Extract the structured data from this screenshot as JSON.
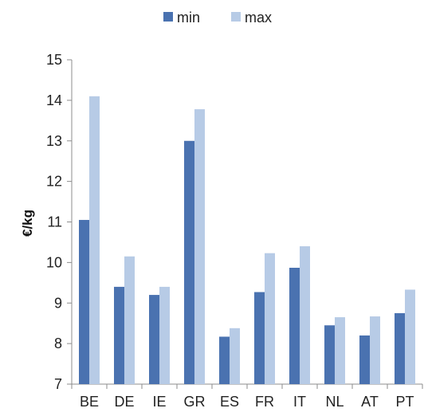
{
  "chart_data": {
    "type": "bar",
    "categories": [
      "BE",
      "DE",
      "IE",
      "GR",
      "ES",
      "FR",
      "IT",
      "NL",
      "AT",
      "PT"
    ],
    "series": [
      {
        "name": "min",
        "values": [
          11.05,
          9.4,
          9.2,
          13.0,
          8.17,
          9.27,
          9.87,
          8.45,
          8.2,
          8.75
        ],
        "color": "#4a72b0"
      },
      {
        "name": "max",
        "values": [
          14.1,
          10.15,
          9.4,
          13.78,
          8.38,
          10.23,
          10.4,
          8.65,
          8.67,
          9.33
        ],
        "color": "#b7cbe6"
      }
    ],
    "title": "",
    "xlabel": "",
    "ylabel": "€/kg",
    "ylim": [
      7,
      15
    ],
    "yticks": [
      "7",
      "8",
      "9",
      "10",
      "11",
      "12",
      "13",
      "14",
      "15"
    ],
    "grid": false,
    "legend": "top-center"
  }
}
